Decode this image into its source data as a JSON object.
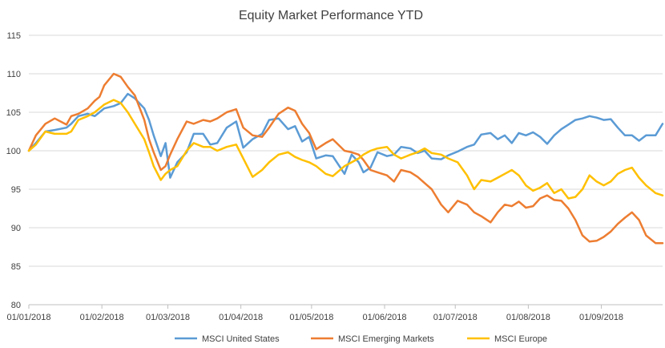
{
  "chart_data": {
    "type": "line",
    "title": "Equity Market Performance YTD",
    "xlabel": "",
    "ylabel": "",
    "ylim": [
      80,
      115
    ],
    "yticks": [
      80,
      85,
      90,
      95,
      100,
      105,
      110,
      115
    ],
    "xlim": [
      "01/01/2018",
      "27/09/2018"
    ],
    "xticks": [
      "01/01/2018",
      "01/02/2018",
      "01/03/2018",
      "01/04/2018",
      "01/05/2018",
      "01/06/2018",
      "01/07/2018",
      "01/08/2018",
      "01/09/2018"
    ],
    "grid": "horizontal",
    "legend": "bottom",
    "series": [
      {
        "name": "MSCI United States",
        "color": "#5B9BD5",
        "points": [
          [
            "01/01/2018",
            100.0
          ],
          [
            "04/01/2018",
            101.0
          ],
          [
            "08/01/2018",
            102.5
          ],
          [
            "12/01/2018",
            102.7
          ],
          [
            "17/01/2018",
            103.0
          ],
          [
            "19/01/2018",
            103.5
          ],
          [
            "22/01/2018",
            104.5
          ],
          [
            "26/01/2018",
            104.8
          ],
          [
            "29/01/2018",
            104.5
          ],
          [
            "31/01/2018",
            105.0
          ],
          [
            "02/02/2018",
            105.5
          ],
          [
            "06/02/2018",
            105.8
          ],
          [
            "09/02/2018",
            106.2
          ],
          [
            "12/02/2018",
            107.4
          ],
          [
            "15/02/2018",
            106.8
          ],
          [
            "19/02/2018",
            105.5
          ],
          [
            "21/02/2018",
            104.0
          ],
          [
            "23/02/2018",
            102.0
          ],
          [
            "26/02/2018",
            99.3
          ],
          [
            "28/02/2018",
            101.0
          ],
          [
            "02/03/2018",
            96.5
          ],
          [
            "05/03/2018",
            98.5
          ],
          [
            "09/03/2018",
            99.8
          ],
          [
            "12/03/2018",
            102.2
          ],
          [
            "16/03/2018",
            102.2
          ],
          [
            "19/03/2018",
            100.8
          ],
          [
            "22/03/2018",
            101.0
          ],
          [
            "26/03/2018",
            103.0
          ],
          [
            "30/03/2018",
            103.8
          ],
          [
            "02/04/2018",
            100.4
          ],
          [
            "06/04/2018",
            101.5
          ],
          [
            "10/04/2018",
            102.2
          ],
          [
            "13/04/2018",
            104.0
          ],
          [
            "17/04/2018",
            104.2
          ],
          [
            "21/04/2018",
            102.8
          ],
          [
            "24/04/2018",
            103.2
          ],
          [
            "27/04/2018",
            101.2
          ],
          [
            "30/04/2018",
            101.8
          ],
          [
            "03/05/2018",
            99.0
          ],
          [
            "07/05/2018",
            99.4
          ],
          [
            "10/05/2018",
            99.3
          ],
          [
            "15/05/2018",
            97.0
          ],
          [
            "18/05/2018",
            99.5
          ],
          [
            "21/05/2018",
            98.5
          ],
          [
            "23/05/2018",
            97.2
          ],
          [
            "26/05/2018",
            97.8
          ],
          [
            "29/05/2018",
            99.8
          ],
          [
            "02/06/2018",
            99.3
          ],
          [
            "05/06/2018",
            99.5
          ],
          [
            "08/06/2018",
            100.5
          ],
          [
            "12/06/2018",
            100.3
          ],
          [
            "15/06/2018",
            99.7
          ],
          [
            "18/06/2018",
            100.0
          ],
          [
            "21/06/2018",
            99.0
          ],
          [
            "25/06/2018",
            98.9
          ],
          [
            "28/06/2018",
            99.4
          ],
          [
            "02/07/2018",
            99.9
          ],
          [
            "06/07/2018",
            100.5
          ],
          [
            "09/07/2018",
            100.8
          ],
          [
            "12/07/2018",
            102.1
          ],
          [
            "16/07/2018",
            102.3
          ],
          [
            "19/07/2018",
            101.5
          ],
          [
            "22/07/2018",
            102.0
          ],
          [
            "25/07/2018",
            101.0
          ],
          [
            "28/07/2018",
            102.3
          ],
          [
            "31/07/2018",
            102.0
          ],
          [
            "03/08/2018",
            102.4
          ],
          [
            "06/08/2018",
            101.8
          ],
          [
            "09/08/2018",
            100.9
          ],
          [
            "12/08/2018",
            102.0
          ],
          [
            "15/08/2018",
            102.8
          ],
          [
            "18/08/2018",
            103.4
          ],
          [
            "21/08/2018",
            104.0
          ],
          [
            "24/08/2018",
            104.2
          ],
          [
            "27/08/2018",
            104.5
          ],
          [
            "30/08/2018",
            104.3
          ],
          [
            "02/09/2018",
            104.0
          ],
          [
            "05/09/2018",
            104.1
          ],
          [
            "08/09/2018",
            103.0
          ],
          [
            "11/09/2018",
            102.0
          ],
          [
            "14/09/2018",
            102.0
          ],
          [
            "17/09/2018",
            101.3
          ],
          [
            "20/09/2018",
            102.0
          ],
          [
            "24/09/2018",
            102.0
          ],
          [
            "27/09/2018",
            103.5
          ]
        ]
      },
      {
        "name": "MSCI Emerging Markets",
        "color": "#ED7D31",
        "points": [
          [
            "01/01/2018",
            100.0
          ],
          [
            "04/01/2018",
            102.0
          ],
          [
            "08/01/2018",
            103.5
          ],
          [
            "12/01/2018",
            104.2
          ],
          [
            "17/01/2018",
            103.4
          ],
          [
            "19/01/2018",
            104.5
          ],
          [
            "22/01/2018",
            104.8
          ],
          [
            "26/01/2018",
            105.5
          ],
          [
            "29/01/2018",
            106.5
          ],
          [
            "31/01/2018",
            107.0
          ],
          [
            "02/02/2018",
            108.5
          ],
          [
            "06/02/2018",
            110.0
          ],
          [
            "09/02/2018",
            109.6
          ],
          [
            "12/02/2018",
            108.3
          ],
          [
            "15/02/2018",
            107.2
          ],
          [
            "19/02/2018",
            104.0
          ],
          [
            "21/02/2018",
            101.5
          ],
          [
            "23/02/2018",
            99.8
          ],
          [
            "26/02/2018",
            97.5
          ],
          [
            "28/02/2018",
            98.0
          ],
          [
            "02/03/2018",
            99.5
          ],
          [
            "05/03/2018",
            101.5
          ],
          [
            "09/03/2018",
            103.8
          ],
          [
            "12/03/2018",
            103.5
          ],
          [
            "16/03/2018",
            104.0
          ],
          [
            "19/03/2018",
            103.8
          ],
          [
            "22/03/2018",
            104.2
          ],
          [
            "26/03/2018",
            105.0
          ],
          [
            "30/03/2018",
            105.4
          ],
          [
            "02/04/2018",
            103.0
          ],
          [
            "06/04/2018",
            102.0
          ],
          [
            "10/04/2018",
            101.8
          ],
          [
            "13/04/2018",
            103.0
          ],
          [
            "17/04/2018",
            104.8
          ],
          [
            "21/04/2018",
            105.6
          ],
          [
            "24/04/2018",
            105.2
          ],
          [
            "27/04/2018",
            103.5
          ],
          [
            "30/04/2018",
            102.3
          ],
          [
            "03/05/2018",
            100.2
          ],
          [
            "07/05/2018",
            101.0
          ],
          [
            "10/05/2018",
            101.5
          ],
          [
            "15/05/2018",
            100.0
          ],
          [
            "18/05/2018",
            99.8
          ],
          [
            "21/05/2018",
            99.5
          ],
          [
            "23/05/2018",
            98.8
          ],
          [
            "26/05/2018",
            97.5
          ],
          [
            "29/05/2018",
            97.2
          ],
          [
            "02/06/2018",
            96.8
          ],
          [
            "05/06/2018",
            96.0
          ],
          [
            "08/06/2018",
            97.5
          ],
          [
            "12/06/2018",
            97.2
          ],
          [
            "15/06/2018",
            96.6
          ],
          [
            "18/06/2018",
            95.8
          ],
          [
            "21/06/2018",
            95.0
          ],
          [
            "25/06/2018",
            93.0
          ],
          [
            "28/06/2018",
            92.0
          ],
          [
            "02/07/2018",
            93.5
          ],
          [
            "06/07/2018",
            93.0
          ],
          [
            "09/07/2018",
            92.0
          ],
          [
            "12/07/2018",
            91.5
          ],
          [
            "16/07/2018",
            90.7
          ],
          [
            "19/07/2018",
            92.0
          ],
          [
            "22/07/2018",
            93.0
          ],
          [
            "25/07/2018",
            92.8
          ],
          [
            "28/07/2018",
            93.4
          ],
          [
            "31/07/2018",
            92.6
          ],
          [
            "03/08/2018",
            92.8
          ],
          [
            "06/08/2018",
            93.8
          ],
          [
            "09/08/2018",
            94.2
          ],
          [
            "12/08/2018",
            93.6
          ],
          [
            "15/08/2018",
            93.5
          ],
          [
            "18/08/2018",
            92.5
          ],
          [
            "21/08/2018",
            91.0
          ],
          [
            "24/08/2018",
            89.0
          ],
          [
            "27/08/2018",
            88.2
          ],
          [
            "30/08/2018",
            88.3
          ],
          [
            "02/09/2018",
            88.8
          ],
          [
            "05/09/2018",
            89.5
          ],
          [
            "08/09/2018",
            90.5
          ],
          [
            "11/09/2018",
            91.3
          ],
          [
            "14/09/2018",
            92.0
          ],
          [
            "17/09/2018",
            91.0
          ],
          [
            "20/09/2018",
            89.0
          ],
          [
            "24/09/2018",
            88.0
          ],
          [
            "27/09/2018",
            88.0
          ]
        ]
      },
      {
        "name": "MSCI Europe",
        "color": "#FFC000",
        "points": [
          [
            "01/01/2018",
            100.0
          ],
          [
            "04/01/2018",
            100.8
          ],
          [
            "08/01/2018",
            102.5
          ],
          [
            "12/01/2018",
            102.2
          ],
          [
            "17/01/2018",
            102.2
          ],
          [
            "19/01/2018",
            102.5
          ],
          [
            "22/01/2018",
            104.0
          ],
          [
            "26/01/2018",
            104.5
          ],
          [
            "29/01/2018",
            105.0
          ],
          [
            "31/01/2018",
            105.5
          ],
          [
            "02/02/2018",
            106.0
          ],
          [
            "06/02/2018",
            106.6
          ],
          [
            "09/02/2018",
            106.2
          ],
          [
            "12/02/2018",
            105.0
          ],
          [
            "15/02/2018",
            103.5
          ],
          [
            "19/02/2018",
            101.5
          ],
          [
            "21/02/2018",
            99.8
          ],
          [
            "23/02/2018",
            98.0
          ],
          [
            "26/02/2018",
            96.2
          ],
          [
            "28/02/2018",
            97.0
          ],
          [
            "02/03/2018",
            97.5
          ],
          [
            "05/03/2018",
            98.0
          ],
          [
            "09/03/2018",
            100.0
          ],
          [
            "12/03/2018",
            101.0
          ],
          [
            "16/03/2018",
            100.5
          ],
          [
            "19/03/2018",
            100.5
          ],
          [
            "22/03/2018",
            100.0
          ],
          [
            "26/03/2018",
            100.5
          ],
          [
            "30/03/2018",
            100.8
          ],
          [
            "02/04/2018",
            99.0
          ],
          [
            "06/04/2018",
            96.6
          ],
          [
            "10/04/2018",
            97.5
          ],
          [
            "13/04/2018",
            98.5
          ],
          [
            "17/04/2018",
            99.5
          ],
          [
            "21/04/2018",
            99.8
          ],
          [
            "24/04/2018",
            99.2
          ],
          [
            "27/04/2018",
            98.8
          ],
          [
            "30/04/2018",
            98.5
          ],
          [
            "03/05/2018",
            98.0
          ],
          [
            "07/05/2018",
            97.0
          ],
          [
            "10/05/2018",
            96.7
          ],
          [
            "15/05/2018",
            98.0
          ],
          [
            "18/05/2018",
            98.5
          ],
          [
            "21/05/2018",
            99.0
          ],
          [
            "23/05/2018",
            99.5
          ],
          [
            "26/05/2018",
            100.0
          ],
          [
            "29/05/2018",
            100.3
          ],
          [
            "02/06/2018",
            100.5
          ],
          [
            "05/06/2018",
            99.5
          ],
          [
            "08/06/2018",
            99.0
          ],
          [
            "12/06/2018",
            99.5
          ],
          [
            "15/06/2018",
            99.8
          ],
          [
            "18/06/2018",
            100.3
          ],
          [
            "21/06/2018",
            99.7
          ],
          [
            "25/06/2018",
            99.5
          ],
          [
            "28/06/2018",
            99.0
          ],
          [
            "02/07/2018",
            98.5
          ],
          [
            "06/07/2018",
            96.8
          ],
          [
            "09/07/2018",
            95.0
          ],
          [
            "12/07/2018",
            96.2
          ],
          [
            "16/07/2018",
            96.0
          ],
          [
            "19/07/2018",
            96.5
          ],
          [
            "22/07/2018",
            97.0
          ],
          [
            "25/07/2018",
            97.5
          ],
          [
            "28/07/2018",
            96.8
          ],
          [
            "31/07/2018",
            95.5
          ],
          [
            "03/08/2018",
            94.8
          ],
          [
            "06/08/2018",
            95.2
          ],
          [
            "09/08/2018",
            95.8
          ],
          [
            "12/08/2018",
            94.5
          ],
          [
            "15/08/2018",
            95.0
          ],
          [
            "18/08/2018",
            93.8
          ],
          [
            "21/08/2018",
            94.0
          ],
          [
            "24/08/2018",
            95.0
          ],
          [
            "27/08/2018",
            96.8
          ],
          [
            "30/08/2018",
            96.0
          ],
          [
            "02/09/2018",
            95.5
          ],
          [
            "05/09/2018",
            96.0
          ],
          [
            "08/09/2018",
            97.0
          ],
          [
            "11/09/2018",
            97.5
          ],
          [
            "14/09/2018",
            97.8
          ],
          [
            "17/09/2018",
            96.5
          ],
          [
            "20/09/2018",
            95.5
          ],
          [
            "24/09/2018",
            94.5
          ],
          [
            "27/09/2018",
            94.2
          ]
        ]
      }
    ]
  }
}
